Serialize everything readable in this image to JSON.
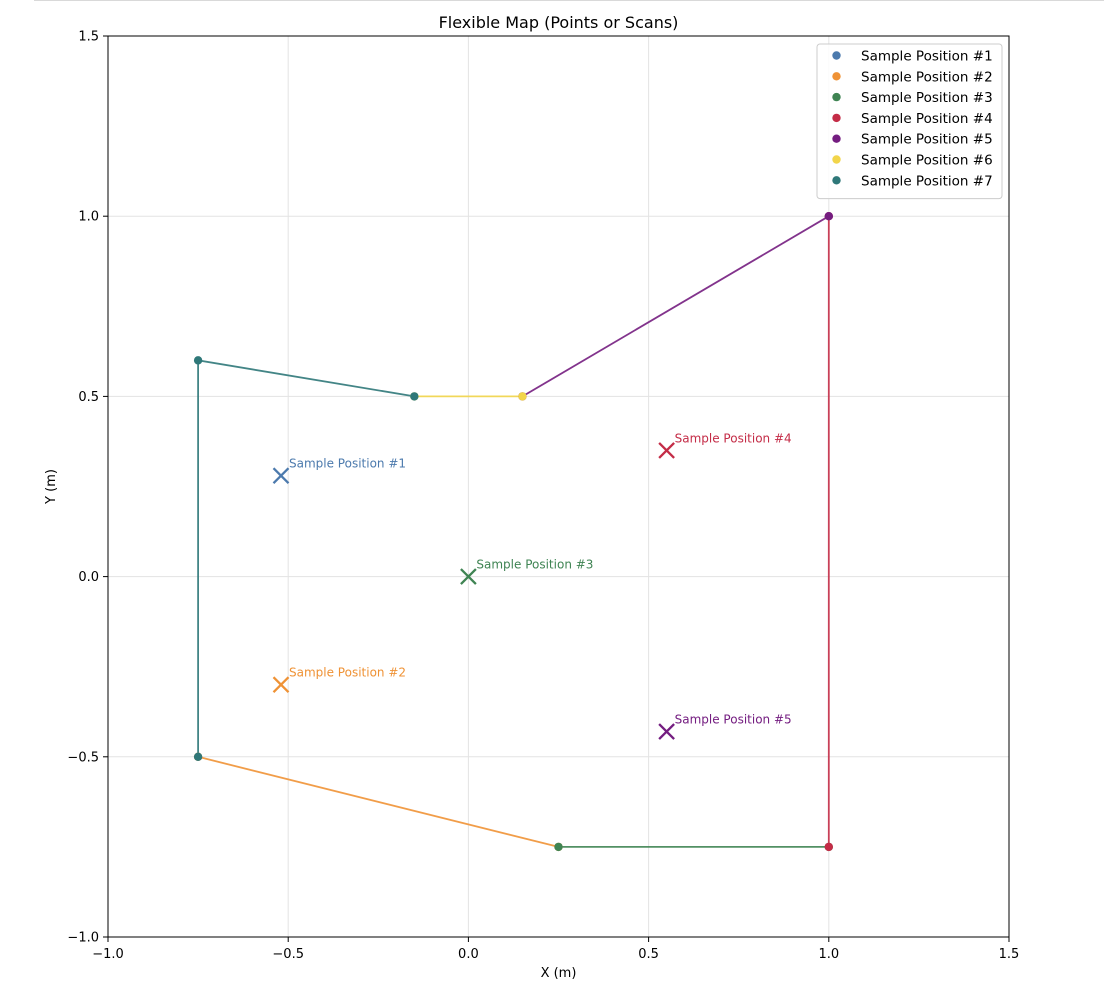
{
  "chart_data": {
    "type": "scatter",
    "title": "Flexible Map (Points or Scans)",
    "xlabel": "X (m)",
    "ylabel": "Y (m)",
    "xlim": [
      -1.0,
      1.5
    ],
    "ylim": [
      -1.0,
      1.5
    ],
    "x_ticks": [
      -1.0,
      -0.5,
      0.0,
      0.5,
      1.0,
      1.5
    ],
    "y_ticks": [
      -1.0,
      -0.5,
      0.0,
      0.5,
      1.0,
      1.5
    ],
    "x_tick_labels": [
      "−1.0",
      "−0.5",
      "0.0",
      "0.5",
      "1.0",
      "1.5"
    ],
    "y_tick_labels": [
      "−1.0",
      "−0.5",
      "0.0",
      "0.5",
      "1.0",
      "1.5"
    ],
    "grid": true,
    "legend_position": "top-right",
    "series": [
      {
        "name": "Sample Position #1",
        "color": "#4c7aad",
        "path": []
      },
      {
        "name": "Sample Position #2",
        "color": "#ef9235",
        "path": [
          [
            -0.75,
            -0.5
          ],
          [
            0.25,
            -0.75
          ]
        ]
      },
      {
        "name": "Sample Position #3",
        "color": "#3f8453",
        "path": [
          [
            0.25,
            -0.75
          ],
          [
            1.0,
            -0.75
          ]
        ]
      },
      {
        "name": "Sample Position #4",
        "color": "#c42c47",
        "path": [
          [
            1.0,
            -0.75
          ],
          [
            1.0,
            1.0
          ]
        ]
      },
      {
        "name": "Sample Position #5",
        "color": "#741d80",
        "path": [
          [
            1.0,
            1.0
          ],
          [
            0.15,
            0.5
          ]
        ]
      },
      {
        "name": "Sample Position #6",
        "color": "#f2d54a",
        "path": [
          [
            0.15,
            0.5
          ],
          [
            -0.15,
            0.5
          ]
        ]
      },
      {
        "name": "Sample Position #7",
        "color": "#2f7879",
        "path": [
          [
            -0.15,
            0.5
          ],
          [
            -0.75,
            0.6
          ],
          [
            -0.75,
            -0.5
          ]
        ]
      }
    ],
    "markers": [
      {
        "label": "Sample Position #1",
        "x": -0.52,
        "y": 0.28,
        "color": "#4c7aad"
      },
      {
        "label": "Sample Position #2",
        "x": -0.52,
        "y": -0.3,
        "color": "#ef9235"
      },
      {
        "label": "Sample Position #3",
        "x": 0.0,
        "y": 0.0,
        "color": "#3f8453"
      },
      {
        "label": "Sample Position #4",
        "x": 0.55,
        "y": 0.35,
        "color": "#c42c47"
      },
      {
        "label": "Sample Position #5",
        "x": 0.55,
        "y": -0.43,
        "color": "#741d80"
      }
    ]
  }
}
